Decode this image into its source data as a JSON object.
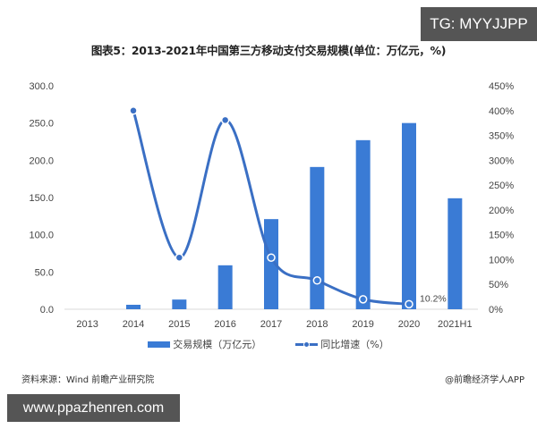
{
  "overlay": {
    "top_badge": "TG: MYYJJPP",
    "bottom_badge": "www.ppazhenren.com"
  },
  "title": "图表5：2013-2021年中国第三方移动支付交易规模(单位：万亿元，%)",
  "legend": {
    "bar_label": "交易规模（万亿元）",
    "line_label": "同比增速（%）"
  },
  "footer": {
    "source": "资料来源：Wind 前瞻产业研究院",
    "credit": "@前瞻经济学人APP"
  },
  "colors": {
    "bar": "#3a7bd5",
    "line": "#3a6fc4",
    "axis": "#d9d9d9"
  },
  "chart_data": {
    "type": "bar",
    "title": "图表5：2013-2021年中国第三方移动支付交易规模(单位：万亿元，%)",
    "categories": [
      "2013",
      "2014",
      "2015",
      "2016",
      "2017",
      "2018",
      "2019",
      "2020",
      "2021H1"
    ],
    "series": [
      {
        "name": "交易规模（万亿元）",
        "type": "bar",
        "axis": "left",
        "values": [
          0.0,
          6.0,
          13.0,
          59.0,
          121.0,
          191.0,
          227.0,
          250.0,
          149.0
        ]
      },
      {
        "name": "同比增速（%）",
        "type": "line",
        "axis": "right",
        "values": [
          null,
          400,
          104,
          381,
          104,
          58,
          20,
          10.2,
          null
        ]
      }
    ],
    "annotations": [
      {
        "category": "2020",
        "series": "同比增速（%）",
        "text": "10.2%"
      }
    ],
    "y_left": {
      "ticks": [
        "0.0",
        "50.0",
        "100.0",
        "150.0",
        "200.0",
        "250.0",
        "300.0"
      ],
      "ylim": [
        0,
        300
      ]
    },
    "y_right": {
      "ticks": [
        "0%",
        "50%",
        "100%",
        "150%",
        "200%",
        "250%",
        "300%",
        "350%",
        "400%",
        "450%"
      ],
      "ylim": [
        0,
        450
      ]
    },
    "xlabel": "",
    "ylabel": "",
    "grid": false,
    "legend_position": "bottom"
  }
}
